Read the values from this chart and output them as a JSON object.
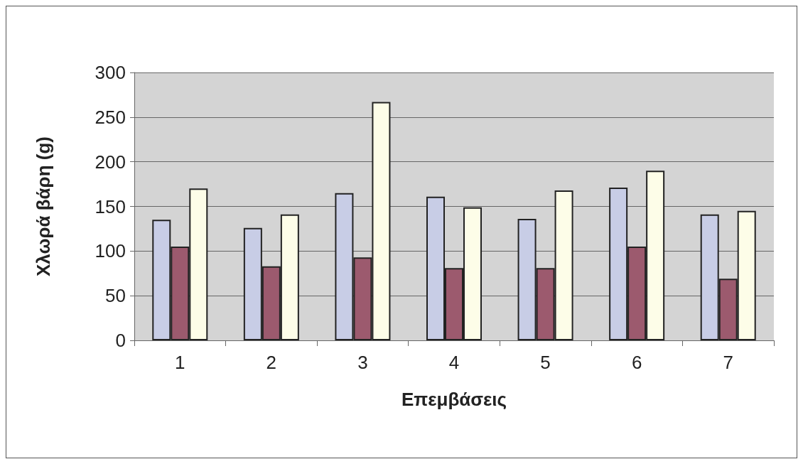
{
  "chart_data": {
    "type": "bar",
    "xlabel": "Επεμβάσεις",
    "ylabel": "Χλωρά βάρη (g)",
    "categories": [
      "1",
      "2",
      "3",
      "4",
      "5",
      "6",
      "7"
    ],
    "series": [
      {
        "color": "#c8cde6",
        "values": [
          135,
          126,
          165,
          161,
          136,
          171,
          141
        ]
      },
      {
        "color": "#9c5a6e",
        "values": [
          105,
          83,
          93,
          81,
          81,
          105,
          69
        ]
      },
      {
        "color": "#fdfde8",
        "values": [
          170,
          141,
          267,
          149,
          168,
          190,
          145
        ]
      }
    ],
    "ylim": [
      0,
      300
    ],
    "yticks": [
      0,
      50,
      100,
      150,
      200,
      250,
      300
    ],
    "grid": "y",
    "legend": false
  }
}
